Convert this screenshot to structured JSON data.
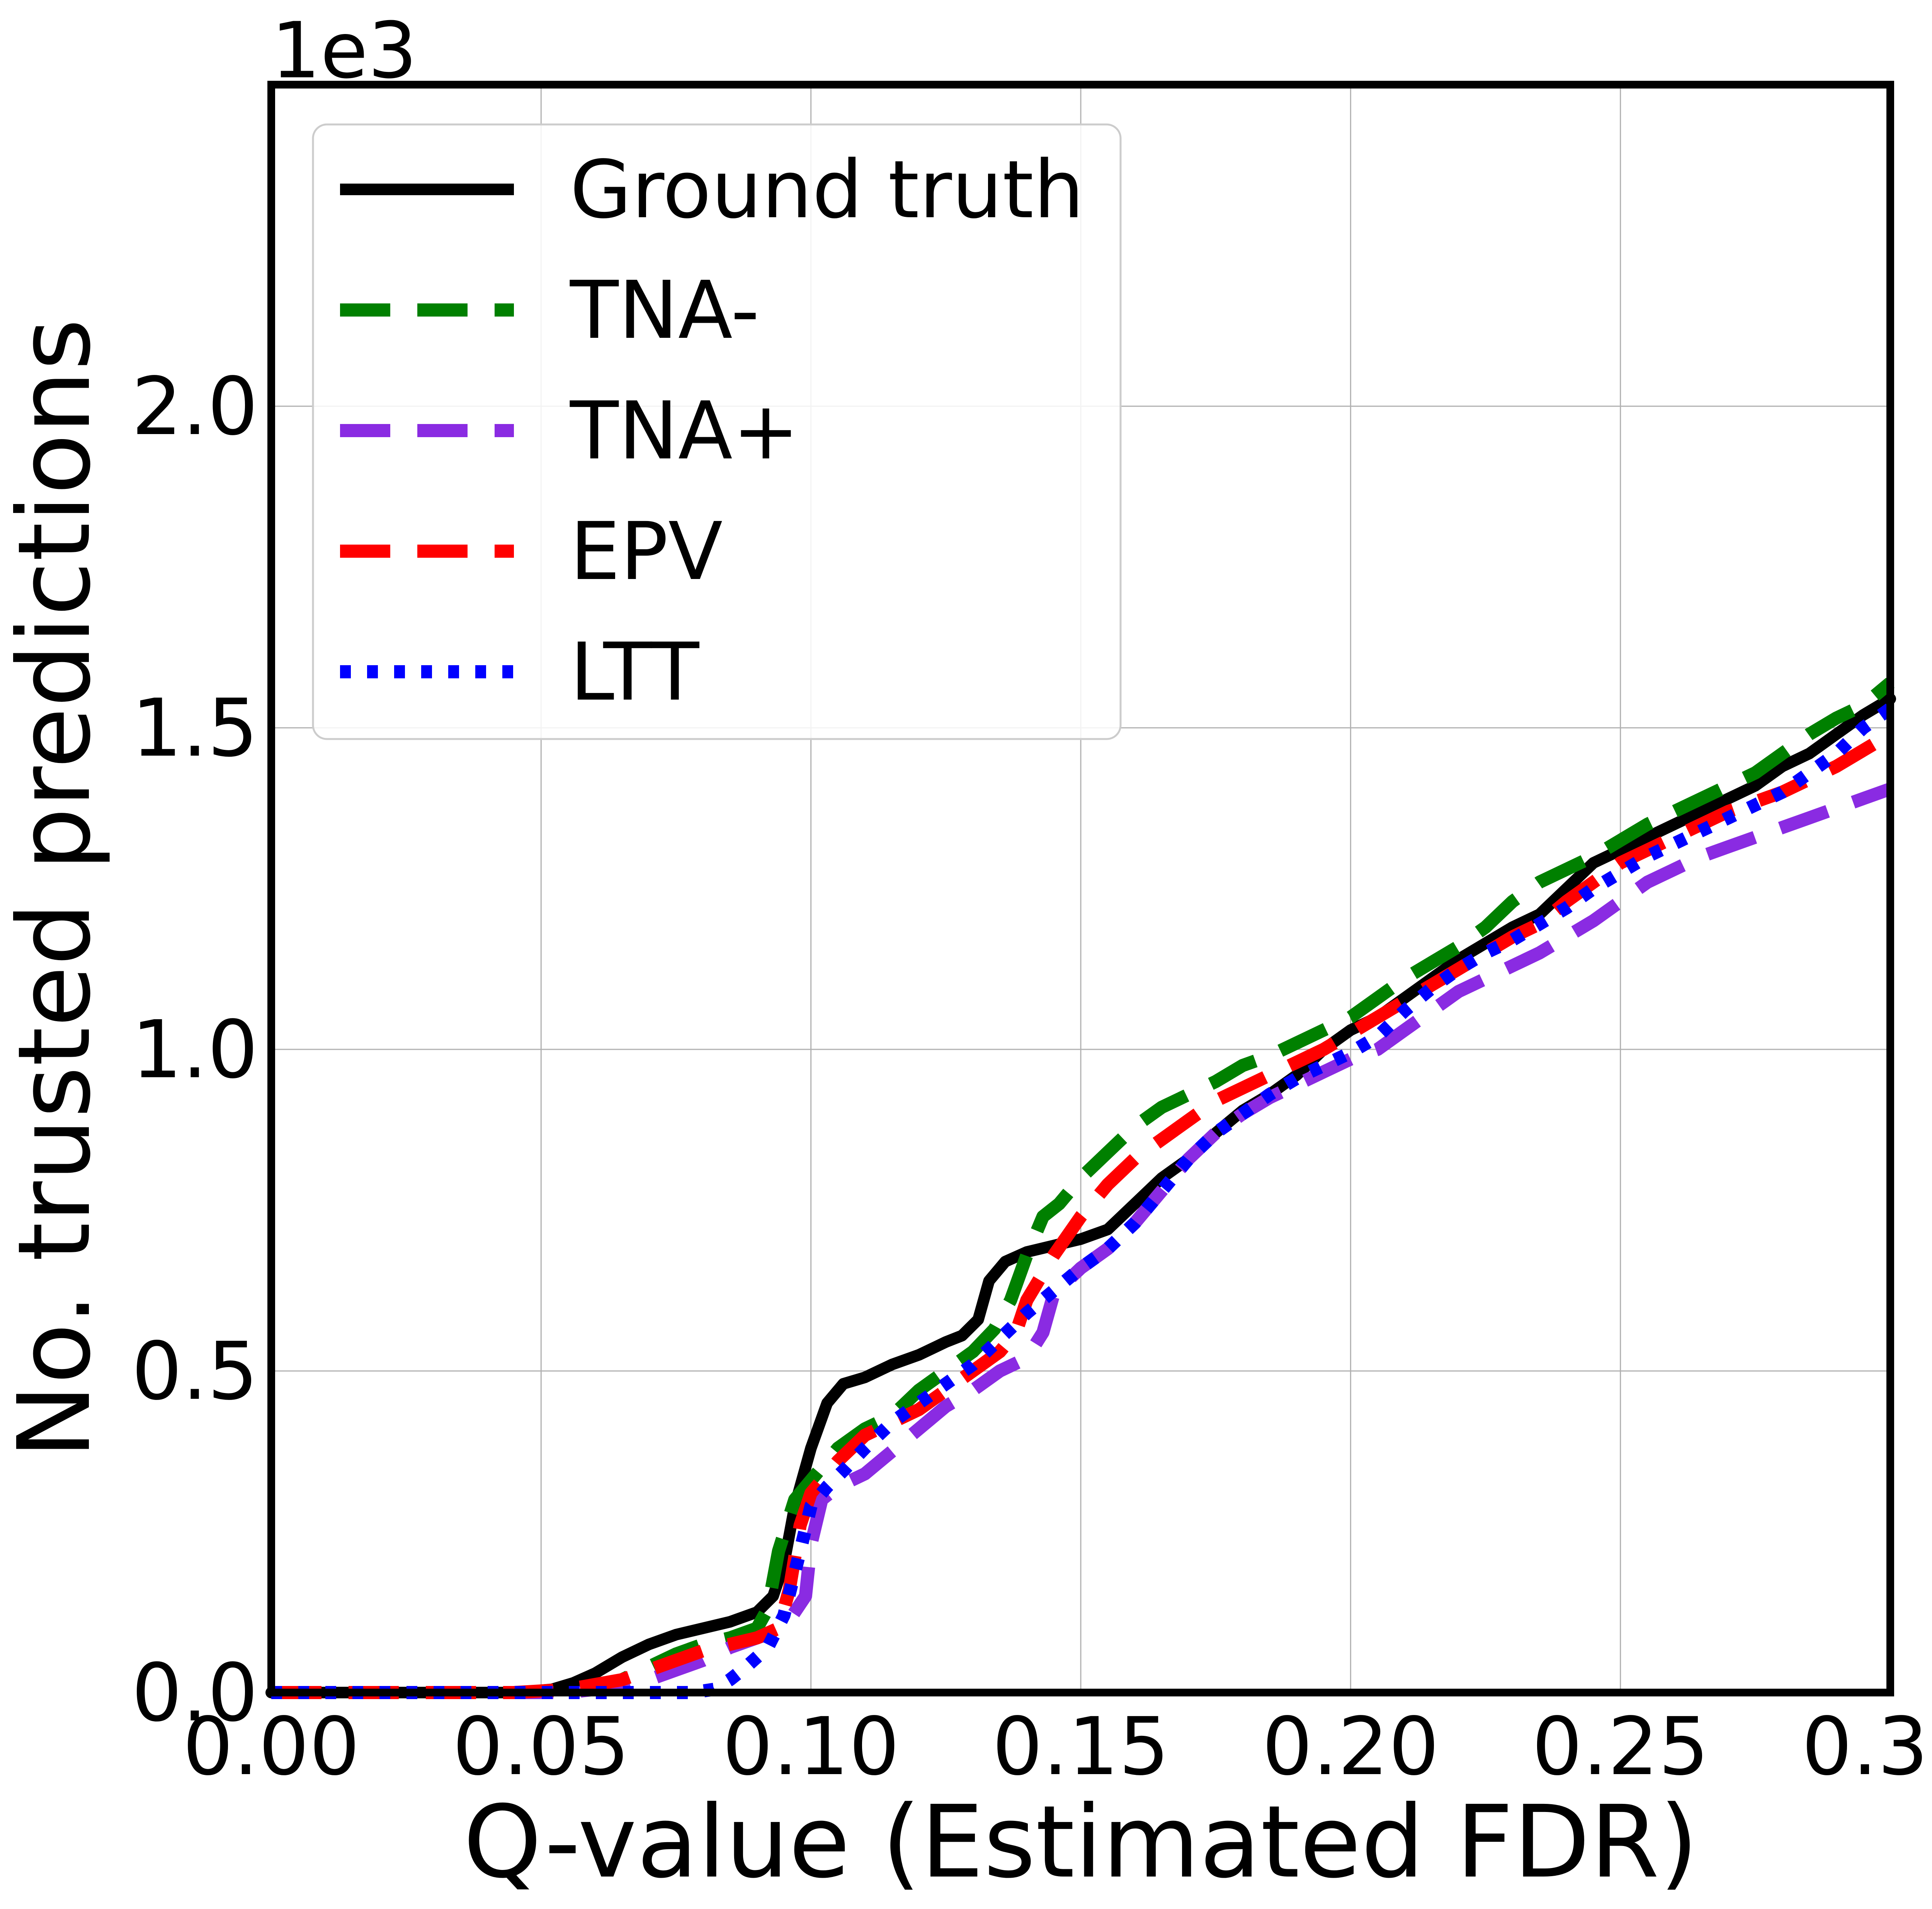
{
  "chart_data": {
    "type": "line",
    "title": "",
    "xlabel": "Q-value (Estimated FDR)",
    "ylabel": "No. trusted predictions",
    "y_offset_label": "1e3",
    "xlim": [
      0.0,
      0.3
    ],
    "ylim": [
      0,
      2500
    ],
    "x_ticks": [
      0.0,
      0.05,
      0.1,
      0.15,
      0.2,
      0.25,
      0.3
    ],
    "x_tick_labels": [
      "0.00",
      "0.05",
      "0.10",
      "0.15",
      "0.20",
      "0.25",
      "0.30"
    ],
    "y_ticks": [
      0,
      500,
      1000,
      1500,
      2000
    ],
    "y_tick_labels": [
      "0.0",
      "0.5",
      "1.0",
      "1.5",
      "2.0"
    ],
    "grid": true,
    "legend_position": "top-left",
    "series": [
      {
        "name": "Ground truth",
        "color": "#000000",
        "style": "solid",
        "points": [
          [
            0.0,
            0
          ],
          [
            0.045,
            0
          ],
          [
            0.052,
            5
          ],
          [
            0.056,
            15
          ],
          [
            0.06,
            30
          ],
          [
            0.065,
            55
          ],
          [
            0.07,
            75
          ],
          [
            0.075,
            90
          ],
          [
            0.08,
            100
          ],
          [
            0.085,
            110
          ],
          [
            0.09,
            125
          ],
          [
            0.093,
            150
          ],
          [
            0.095,
            200
          ],
          [
            0.097,
            290
          ],
          [
            0.1,
            380
          ],
          [
            0.103,
            450
          ],
          [
            0.106,
            480
          ],
          [
            0.11,
            490
          ],
          [
            0.115,
            510
          ],
          [
            0.12,
            525
          ],
          [
            0.125,
            545
          ],
          [
            0.128,
            555
          ],
          [
            0.131,
            580
          ],
          [
            0.133,
            640
          ],
          [
            0.136,
            670
          ],
          [
            0.14,
            685
          ],
          [
            0.145,
            695
          ],
          [
            0.15,
            705
          ],
          [
            0.155,
            720
          ],
          [
            0.16,
            760
          ],
          [
            0.165,
            800
          ],
          [
            0.17,
            830
          ],
          [
            0.175,
            870
          ],
          [
            0.18,
            905
          ],
          [
            0.185,
            930
          ],
          [
            0.19,
            960
          ],
          [
            0.195,
            1000
          ],
          [
            0.2,
            1030
          ],
          [
            0.205,
            1050
          ],
          [
            0.21,
            1080
          ],
          [
            0.215,
            1110
          ],
          [
            0.22,
            1140
          ],
          [
            0.225,
            1165
          ],
          [
            0.23,
            1190
          ],
          [
            0.235,
            1210
          ],
          [
            0.24,
            1250
          ],
          [
            0.245,
            1290
          ],
          [
            0.25,
            1310
          ],
          [
            0.255,
            1330
          ],
          [
            0.26,
            1350
          ],
          [
            0.265,
            1370
          ],
          [
            0.27,
            1390
          ],
          [
            0.275,
            1410
          ],
          [
            0.28,
            1440
          ],
          [
            0.285,
            1460
          ],
          [
            0.29,
            1490
          ],
          [
            0.295,
            1520
          ],
          [
            0.3,
            1545
          ]
        ]
      },
      {
        "name": "TNA-",
        "color": "#008000",
        "style": "dashed",
        "points": [
          [
            0.0,
            0
          ],
          [
            0.045,
            0
          ],
          [
            0.06,
            5
          ],
          [
            0.065,
            20
          ],
          [
            0.07,
            40
          ],
          [
            0.075,
            60
          ],
          [
            0.08,
            75
          ],
          [
            0.085,
            85
          ],
          [
            0.09,
            100
          ],
          [
            0.092,
            130
          ],
          [
            0.094,
            220
          ],
          [
            0.097,
            300
          ],
          [
            0.1,
            330
          ],
          [
            0.105,
            380
          ],
          [
            0.11,
            410
          ],
          [
            0.115,
            430
          ],
          [
            0.12,
            470
          ],
          [
            0.125,
            500
          ],
          [
            0.13,
            530
          ],
          [
            0.134,
            565
          ],
          [
            0.137,
            610
          ],
          [
            0.14,
            680
          ],
          [
            0.143,
            740
          ],
          [
            0.146,
            760
          ],
          [
            0.15,
            800
          ],
          [
            0.155,
            840
          ],
          [
            0.16,
            880
          ],
          [
            0.165,
            910
          ],
          [
            0.17,
            930
          ],
          [
            0.175,
            950
          ],
          [
            0.18,
            975
          ],
          [
            0.185,
            990
          ],
          [
            0.19,
            1010
          ],
          [
            0.195,
            1030
          ],
          [
            0.2,
            1050
          ],
          [
            0.205,
            1080
          ],
          [
            0.21,
            1110
          ],
          [
            0.215,
            1135
          ],
          [
            0.22,
            1160
          ],
          [
            0.225,
            1190
          ],
          [
            0.23,
            1230
          ],
          [
            0.235,
            1260
          ],
          [
            0.24,
            1280
          ],
          [
            0.245,
            1300
          ],
          [
            0.25,
            1325
          ],
          [
            0.255,
            1350
          ],
          [
            0.26,
            1370
          ],
          [
            0.265,
            1390
          ],
          [
            0.27,
            1410
          ],
          [
            0.275,
            1430
          ],
          [
            0.28,
            1460
          ],
          [
            0.285,
            1490
          ],
          [
            0.29,
            1515
          ],
          [
            0.295,
            1535
          ],
          [
            0.3,
            1570
          ]
        ]
      },
      {
        "name": "TNA+",
        "color": "#8a2be2",
        "style": "dashed",
        "points": [
          [
            0.0,
            0
          ],
          [
            0.055,
            0
          ],
          [
            0.06,
            5
          ],
          [
            0.07,
            20
          ],
          [
            0.075,
            35
          ],
          [
            0.08,
            50
          ],
          [
            0.085,
            70
          ],
          [
            0.09,
            85
          ],
          [
            0.095,
            100
          ],
          [
            0.099,
            150
          ],
          [
            0.1,
            230
          ],
          [
            0.102,
            300
          ],
          [
            0.105,
            320
          ],
          [
            0.11,
            340
          ],
          [
            0.115,
            375
          ],
          [
            0.12,
            410
          ],
          [
            0.125,
            445
          ],
          [
            0.13,
            470
          ],
          [
            0.135,
            500
          ],
          [
            0.14,
            520
          ],
          [
            0.143,
            560
          ],
          [
            0.145,
            620
          ],
          [
            0.15,
            660
          ],
          [
            0.155,
            690
          ],
          [
            0.16,
            730
          ],
          [
            0.165,
            780
          ],
          [
            0.17,
            830
          ],
          [
            0.175,
            870
          ],
          [
            0.18,
            900
          ],
          [
            0.185,
            925
          ],
          [
            0.19,
            945
          ],
          [
            0.195,
            965
          ],
          [
            0.2,
            985
          ],
          [
            0.205,
            1000
          ],
          [
            0.21,
            1030
          ],
          [
            0.215,
            1060
          ],
          [
            0.22,
            1090
          ],
          [
            0.225,
            1110
          ],
          [
            0.23,
            1130
          ],
          [
            0.235,
            1150
          ],
          [
            0.24,
            1175
          ],
          [
            0.245,
            1200
          ],
          [
            0.25,
            1230
          ],
          [
            0.255,
            1260
          ],
          [
            0.26,
            1280
          ],
          [
            0.265,
            1300
          ],
          [
            0.27,
            1315
          ],
          [
            0.275,
            1330
          ],
          [
            0.28,
            1345
          ],
          [
            0.285,
            1360
          ],
          [
            0.29,
            1375
          ],
          [
            0.295,
            1390
          ],
          [
            0.3,
            1405
          ]
        ]
      },
      {
        "name": "EPV",
        "color": "#ff0000",
        "style": "dashed",
        "points": [
          [
            0.0,
            0
          ],
          [
            0.045,
            0
          ],
          [
            0.055,
            5
          ],
          [
            0.065,
            20
          ],
          [
            0.07,
            35
          ],
          [
            0.075,
            50
          ],
          [
            0.08,
            65
          ],
          [
            0.085,
            75
          ],
          [
            0.09,
            85
          ],
          [
            0.094,
            100
          ],
          [
            0.096,
            160
          ],
          [
            0.098,
            260
          ],
          [
            0.1,
            310
          ],
          [
            0.105,
            360
          ],
          [
            0.11,
            400
          ],
          [
            0.115,
            420
          ],
          [
            0.12,
            440
          ],
          [
            0.125,
            470
          ],
          [
            0.13,
            500
          ],
          [
            0.135,
            530
          ],
          [
            0.138,
            560
          ],
          [
            0.14,
            610
          ],
          [
            0.145,
            680
          ],
          [
            0.15,
            740
          ],
          [
            0.155,
            790
          ],
          [
            0.16,
            830
          ],
          [
            0.165,
            860
          ],
          [
            0.17,
            890
          ],
          [
            0.175,
            920
          ],
          [
            0.18,
            940
          ],
          [
            0.185,
            960
          ],
          [
            0.19,
            980
          ],
          [
            0.195,
            1000
          ],
          [
            0.2,
            1025
          ],
          [
            0.205,
            1050
          ],
          [
            0.21,
            1075
          ],
          [
            0.215,
            1100
          ],
          [
            0.22,
            1125
          ],
          [
            0.225,
            1150
          ],
          [
            0.23,
            1175
          ],
          [
            0.235,
            1195
          ],
          [
            0.24,
            1230
          ],
          [
            0.245,
            1260
          ],
          [
            0.25,
            1290
          ],
          [
            0.255,
            1310
          ],
          [
            0.26,
            1330
          ],
          [
            0.265,
            1350
          ],
          [
            0.27,
            1370
          ],
          [
            0.275,
            1385
          ],
          [
            0.28,
            1400
          ],
          [
            0.285,
            1420
          ],
          [
            0.29,
            1440
          ],
          [
            0.295,
            1465
          ],
          [
            0.3,
            1490
          ]
        ]
      },
      {
        "name": "LTT",
        "color": "#0000ff",
        "style": "dotted",
        "points": [
          [
            0.0,
            0
          ],
          [
            0.078,
            0
          ],
          [
            0.082,
            5
          ],
          [
            0.085,
            20
          ],
          [
            0.088,
            40
          ],
          [
            0.092,
            70
          ],
          [
            0.095,
            120
          ],
          [
            0.098,
            220
          ],
          [
            0.1,
            290
          ],
          [
            0.103,
            320
          ],
          [
            0.106,
            345
          ],
          [
            0.11,
            380
          ],
          [
            0.115,
            420
          ],
          [
            0.12,
            450
          ],
          [
            0.125,
            480
          ],
          [
            0.13,
            510
          ],
          [
            0.135,
            550
          ],
          [
            0.14,
            590
          ],
          [
            0.145,
            625
          ],
          [
            0.15,
            660
          ],
          [
            0.155,
            690
          ],
          [
            0.16,
            730
          ],
          [
            0.165,
            780
          ],
          [
            0.17,
            830
          ],
          [
            0.175,
            870
          ],
          [
            0.18,
            900
          ],
          [
            0.185,
            930
          ],
          [
            0.19,
            955
          ],
          [
            0.195,
            975
          ],
          [
            0.2,
            995
          ],
          [
            0.205,
            1020
          ],
          [
            0.21,
            1060
          ],
          [
            0.215,
            1095
          ],
          [
            0.22,
            1125
          ],
          [
            0.225,
            1150
          ],
          [
            0.23,
            1170
          ],
          [
            0.235,
            1195
          ],
          [
            0.24,
            1220
          ],
          [
            0.245,
            1250
          ],
          [
            0.25,
            1275
          ],
          [
            0.255,
            1300
          ],
          [
            0.26,
            1320
          ],
          [
            0.265,
            1340
          ],
          [
            0.27,
            1360
          ],
          [
            0.275,
            1380
          ],
          [
            0.28,
            1400
          ],
          [
            0.285,
            1430
          ],
          [
            0.29,
            1460
          ],
          [
            0.295,
            1500
          ],
          [
            0.3,
            1530
          ]
        ]
      }
    ]
  }
}
